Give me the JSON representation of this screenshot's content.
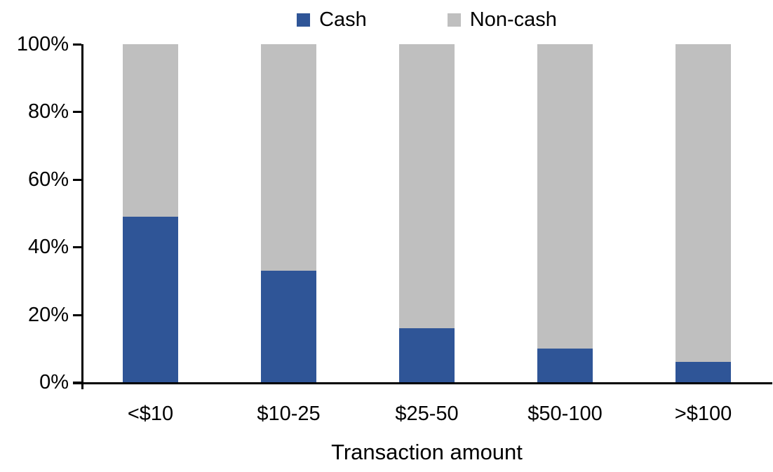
{
  "chart_data": {
    "type": "bar",
    "stacking": "percent",
    "title": "",
    "xlabel": "Transaction amount",
    "ylabel": "",
    "categories": [
      "<$10",
      "$10-25",
      "$25-50",
      "$50-100",
      ">$100"
    ],
    "series": [
      {
        "name": "Cash",
        "color": "#2F5597",
        "values": [
          49,
          33,
          16,
          10,
          6
        ]
      },
      {
        "name": "Non-cash",
        "color": "#BFBFBF",
        "values": [
          51,
          67,
          84,
          90,
          94
        ]
      }
    ],
    "ylim": [
      0,
      100
    ],
    "yticks": [
      "0%",
      "20%",
      "40%",
      "60%",
      "80%",
      "100%"
    ],
    "legend_position": "top",
    "grid": false,
    "colors": {
      "axis": "#000000",
      "text": "#000000",
      "background": "#FFFFFF"
    }
  }
}
